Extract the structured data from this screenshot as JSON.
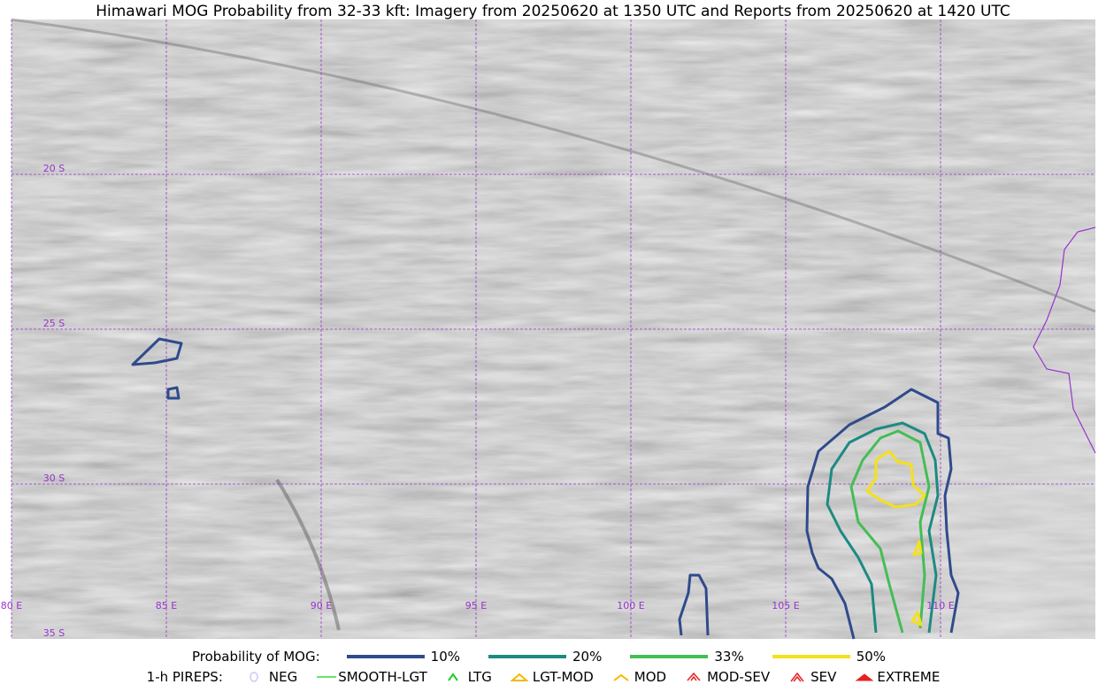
{
  "title": "Himawari MOG Probability from 32-33 kft: Imagery from 20250620 at 1350 UTC and Reports from 20250620 at 1420 UTC",
  "lat_labels": [
    "20 S",
    "25 S",
    "30 S",
    "35 S"
  ],
  "lon_labels": [
    "80 E",
    "85 E",
    "90 E",
    "95 E",
    "100 E",
    "105 E",
    "110 E"
  ],
  "probability_legend": {
    "title": "Probability of MOG:",
    "items": [
      {
        "label": "10%",
        "color": "#2f4b8c"
      },
      {
        "label": "20%",
        "color": "#1d8a82"
      },
      {
        "label": "33%",
        "color": "#45bd55"
      },
      {
        "label": "50%",
        "color": "#f4e11a"
      }
    ]
  },
  "pireps_legend": {
    "title": "1-h PIREPS:",
    "items": [
      {
        "label": "NEG",
        "color": "#c8c8ff"
      },
      {
        "label": "SMOOTH-LGT",
        "color": "#33dd33"
      },
      {
        "label": "LTG",
        "color": "#22cc22"
      },
      {
        "label": "LGT-MOD",
        "color": "#f5b800"
      },
      {
        "label": "MOD",
        "color": "#f5b800"
      },
      {
        "label": "MOD-SEV",
        "color": "#e82020"
      },
      {
        "label": "SEV",
        "color": "#e82020"
      },
      {
        "label": "EXTREME",
        "color": "#e82020"
      }
    ]
  }
}
